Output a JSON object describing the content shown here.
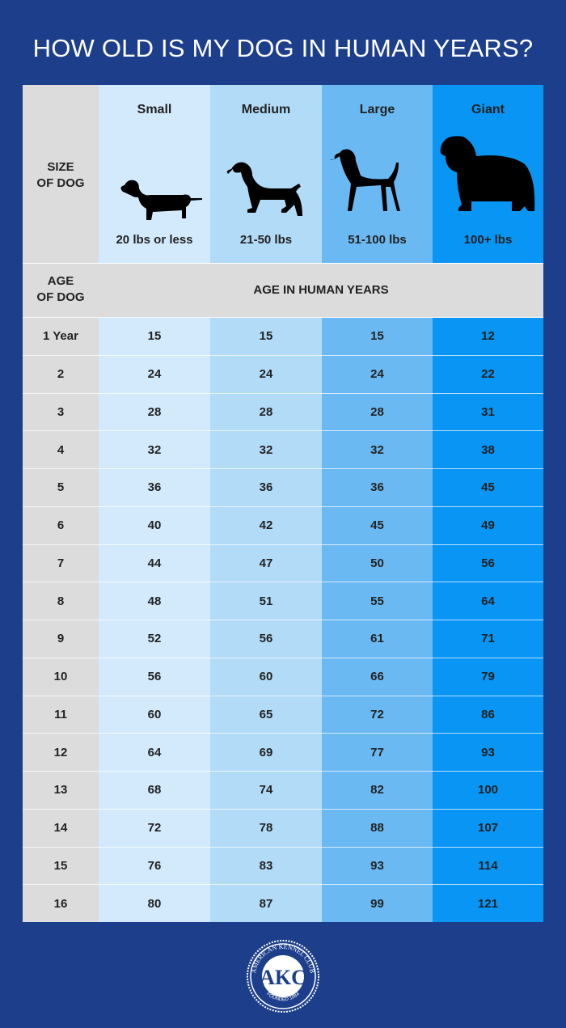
{
  "title": "HOW OLD IS MY DOG IN HUMAN YEARS?",
  "size_label": [
    "SIZE",
    "OF DOG"
  ],
  "age_label": [
    "AGE",
    "OF DOG"
  ],
  "age_header": "AGE IN HUMAN YEARS",
  "colors": {
    "background": "#1d3f8b",
    "label_column": "#dcdcdc",
    "small": "#d3eafc",
    "medium": "#b2dbf8",
    "large": "#6bb9f2",
    "giant": "#0895f4"
  },
  "sizes": [
    {
      "name": "Small",
      "weight": "20 lbs or less",
      "icon": "dachshund-silhouette-icon"
    },
    {
      "name": "Medium",
      "weight": "21-50 lbs",
      "icon": "spaniel-silhouette-icon"
    },
    {
      "name": "Large",
      "weight": "51-100 lbs",
      "icon": "pointer-silhouette-icon"
    },
    {
      "name": "Giant",
      "weight": "100+ lbs",
      "icon": "newfoundland-silhouette-icon"
    }
  ],
  "chart_data": {
    "type": "table",
    "title": "HOW OLD IS MY DOG IN HUMAN YEARS?",
    "columns": [
      "Small",
      "Medium",
      "Large",
      "Giant"
    ],
    "rows": [
      {
        "age": "1 Year",
        "values": [
          15,
          15,
          15,
          12
        ]
      },
      {
        "age": "2",
        "values": [
          24,
          24,
          24,
          22
        ]
      },
      {
        "age": "3",
        "values": [
          28,
          28,
          28,
          31
        ]
      },
      {
        "age": "4",
        "values": [
          32,
          32,
          32,
          38
        ]
      },
      {
        "age": "5",
        "values": [
          36,
          36,
          36,
          45
        ]
      },
      {
        "age": "6",
        "values": [
          40,
          42,
          45,
          49
        ]
      },
      {
        "age": "7",
        "values": [
          44,
          47,
          50,
          56
        ]
      },
      {
        "age": "8",
        "values": [
          48,
          51,
          55,
          64
        ]
      },
      {
        "age": "9",
        "values": [
          52,
          56,
          61,
          71
        ]
      },
      {
        "age": "10",
        "values": [
          56,
          60,
          66,
          79
        ]
      },
      {
        "age": "11",
        "values": [
          60,
          65,
          72,
          86
        ]
      },
      {
        "age": "12",
        "values": [
          64,
          69,
          77,
          93
        ]
      },
      {
        "age": "13",
        "values": [
          68,
          74,
          82,
          100
        ]
      },
      {
        "age": "14",
        "values": [
          72,
          78,
          88,
          107
        ]
      },
      {
        "age": "15",
        "values": [
          76,
          83,
          93,
          114
        ]
      },
      {
        "age": "16",
        "values": [
          80,
          87,
          99,
          121
        ]
      }
    ]
  },
  "logo": {
    "text": "AKC",
    "ring_top": "AMERICAN KENNEL CLUB",
    "ring_bottom": "FOUNDED 1884"
  }
}
